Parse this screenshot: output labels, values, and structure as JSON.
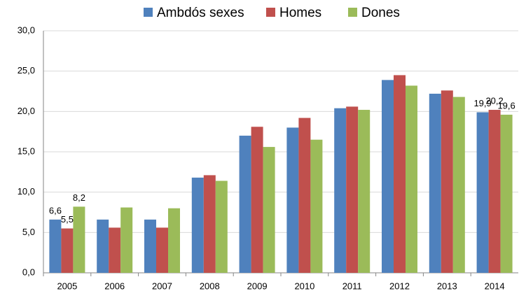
{
  "chart_data": {
    "type": "bar",
    "categories": [
      "2005",
      "2006",
      "2007",
      "2008",
      "2009",
      "2010",
      "2011",
      "2012",
      "2013",
      "2014"
    ],
    "series": [
      {
        "name": "Ambdós sexes",
        "color": "#4f81bd",
        "values": [
          6.6,
          6.6,
          6.6,
          11.8,
          17.0,
          18.0,
          20.4,
          23.9,
          22.2,
          19.9
        ],
        "value_labels": [
          "6,6",
          null,
          null,
          null,
          null,
          null,
          null,
          null,
          null,
          "19,9"
        ]
      },
      {
        "name": "Homes",
        "color": "#c0504d",
        "values": [
          5.5,
          5.6,
          5.6,
          12.1,
          18.1,
          19.2,
          20.6,
          24.5,
          22.6,
          20.2
        ],
        "value_labels": [
          "5,5",
          null,
          null,
          null,
          null,
          null,
          null,
          null,
          null,
          "20,2"
        ]
      },
      {
        "name": "Dones",
        "color": "#9bbb59",
        "values": [
          8.2,
          8.1,
          8.0,
          11.4,
          15.6,
          16.5,
          20.2,
          23.2,
          21.8,
          19.6
        ],
        "value_labels": [
          "8,2",
          null,
          null,
          null,
          null,
          null,
          null,
          null,
          null,
          "19,6"
        ]
      }
    ],
    "ylim": [
      0,
      30
    ],
    "yticks": [
      {
        "value": 0,
        "label": "0,0"
      },
      {
        "value": 5,
        "label": "5,0"
      },
      {
        "value": 10,
        "label": "10,0"
      },
      {
        "value": 15,
        "label": "15,0"
      },
      {
        "value": 20,
        "label": "20,0"
      },
      {
        "value": 25,
        "label": "25,0"
      },
      {
        "value": 30,
        "label": "30,0"
      }
    ],
    "grid": true,
    "legend": "top"
  }
}
